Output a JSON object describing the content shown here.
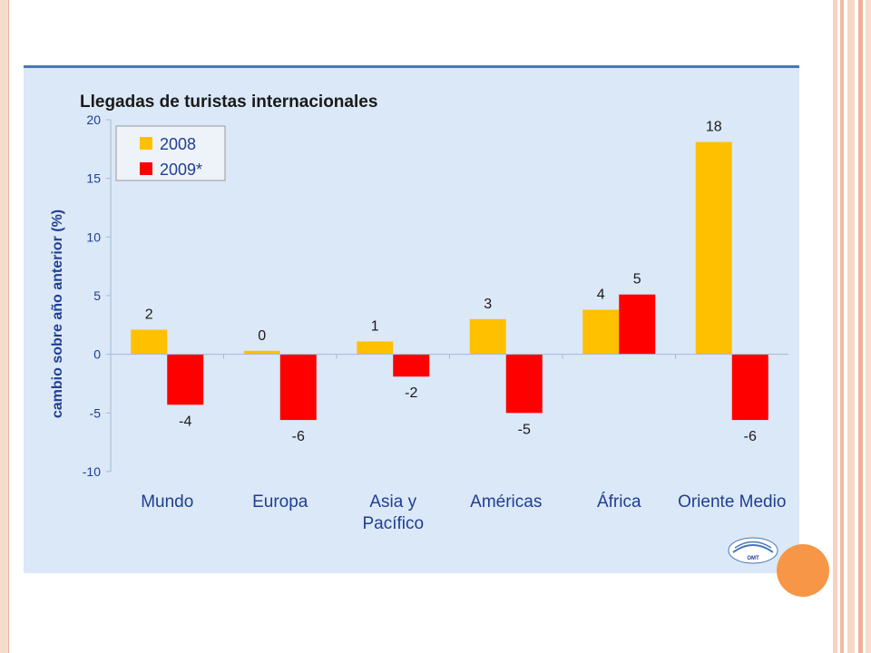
{
  "colors": {
    "panel_bg": "#dbe8f7",
    "panel_border": "#4a78b5",
    "series_2008": "#ffc000",
    "series_2009": "#ff0000",
    "axis_text": "#1f3e93",
    "accent_orange": "#f79646",
    "side_stripe": "#f6c8b2"
  },
  "chart_data": {
    "type": "bar",
    "title": "Llegadas de turistas internacionales",
    "ylabel": "cambio sobre  año anterior (%)",
    "xlabel": "",
    "ylim": [
      -10,
      20
    ],
    "yticks": [
      -10,
      -5,
      0,
      5,
      10,
      15,
      20
    ],
    "grid": false,
    "legend_position": "top-left",
    "categories": [
      [
        "Mundo"
      ],
      [
        "Europa"
      ],
      [
        "Asia y",
        "Pacífico"
      ],
      [
        "Américas"
      ],
      [
        "África"
      ],
      [
        "Oriente Medio"
      ]
    ],
    "series": [
      {
        "name": "2008",
        "color": "#ffc000",
        "values": [
          2.1,
          0.3,
          1.1,
          3.0,
          3.8,
          18.1
        ],
        "labels": [
          "2",
          "0",
          "1",
          "3",
          "4",
          "18"
        ]
      },
      {
        "name": "2009*",
        "color": "#ff0000",
        "values": [
          -4.3,
          -5.6,
          -1.9,
          -5.0,
          5.1,
          -5.6
        ],
        "labels": [
          "-4",
          "-6",
          "-2",
          "-5",
          "5",
          "-6"
        ]
      }
    ]
  },
  "logo": {
    "text": "OMT"
  }
}
